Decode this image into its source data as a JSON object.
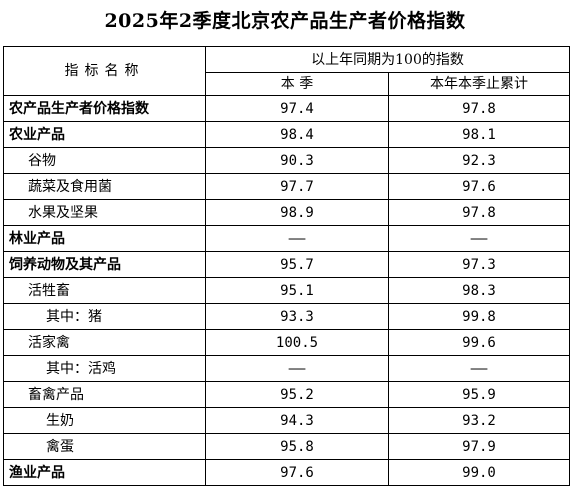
{
  "title": "2025年2季度北京农产品生产者价格指数",
  "header": {
    "indicator": "指标名称",
    "group": "以上年同期为100的指数",
    "col_quarter": "本 季",
    "col_cumulative": "本年本季止累计"
  },
  "rows": [
    {
      "name": "农产品生产者价格指数",
      "level": 0,
      "quarter": "97.4",
      "cumulative": "97.8"
    },
    {
      "name": "农业产品",
      "level": 0,
      "quarter": "98.4",
      "cumulative": "98.1"
    },
    {
      "name": "谷物",
      "level": 1,
      "quarter": "90.3",
      "cumulative": "92.3"
    },
    {
      "name": "蔬菜及食用菌",
      "level": 1,
      "quarter": "97.7",
      "cumulative": "97.6"
    },
    {
      "name": "水果及坚果",
      "level": 1,
      "quarter": "98.9",
      "cumulative": "97.8"
    },
    {
      "name": "林业产品",
      "level": 0,
      "quarter": "——",
      "cumulative": "——"
    },
    {
      "name": "饲养动物及其产品",
      "level": 0,
      "quarter": "95.7",
      "cumulative": "97.3"
    },
    {
      "name": "活牲畜",
      "level": 1,
      "quarter": "95.1",
      "cumulative": "98.3"
    },
    {
      "name": "其中：猪",
      "level": 2,
      "quarter": "93.3",
      "cumulative": "99.8"
    },
    {
      "name": "活家禽",
      "level": 1,
      "quarter": "100.5",
      "cumulative": "99.6"
    },
    {
      "name": "其中：活鸡",
      "level": 2,
      "quarter": "——",
      "cumulative": "——"
    },
    {
      "name": "畜禽产品",
      "level": 1,
      "quarter": "95.2",
      "cumulative": "95.9"
    },
    {
      "name": "生奶",
      "level": 2,
      "quarter": "94.3",
      "cumulative": "93.2"
    },
    {
      "name": "禽蛋",
      "level": 2,
      "quarter": "95.8",
      "cumulative": "97.9"
    },
    {
      "name": "渔业产品",
      "level": 0,
      "quarter": "97.6",
      "cumulative": "99.0"
    }
  ]
}
